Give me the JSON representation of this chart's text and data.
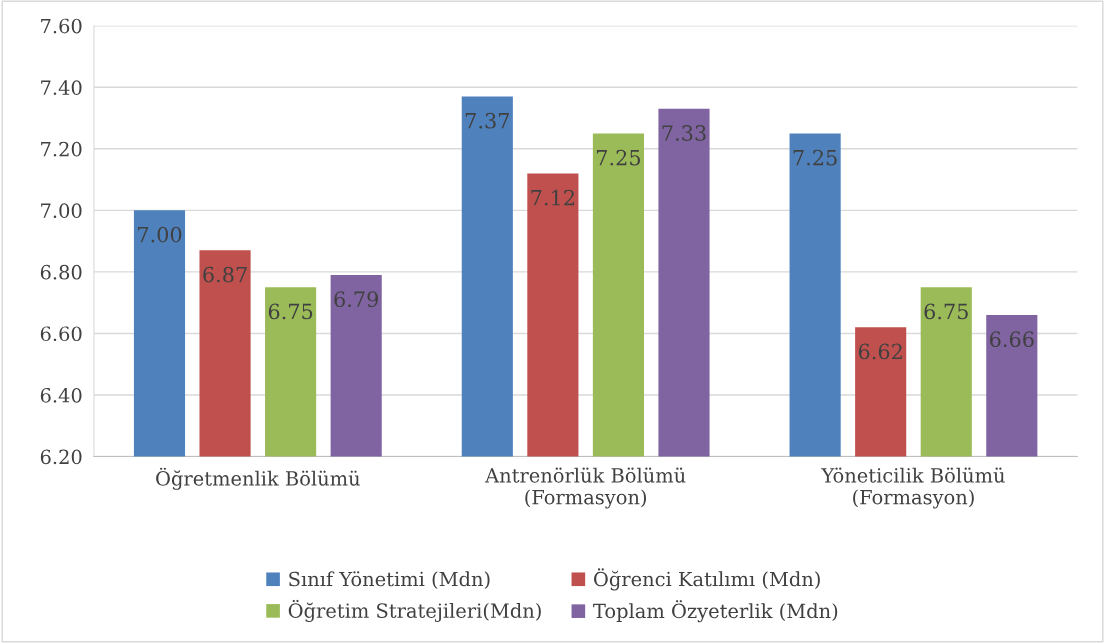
{
  "chart_data": {
    "type": "bar",
    "categories": [
      "Öğretmenlik Bölümü",
      "Antrenörlük Bölümü\n(Formasyon)",
      "Yöneticilik Bölümü\n(Formasyon)"
    ],
    "series": [
      {
        "name": "Sınıf Yönetimi (Mdn)",
        "color": "#4f81bd",
        "values": [
          7.0,
          7.37,
          7.25
        ],
        "value_labels": [
          "7.00",
          "7.37",
          "7.25"
        ]
      },
      {
        "name": "Öğrenci Katılımı (Mdn)",
        "color": "#c0504d",
        "values": [
          6.87,
          7.12,
          6.62
        ],
        "value_labels": [
          "6.87",
          "7.12",
          "6.62"
        ]
      },
      {
        "name": "Öğretim Stratejileri(Mdn)",
        "color": "#9bbb59",
        "values": [
          6.75,
          7.25,
          6.75
        ],
        "value_labels": [
          "6.75",
          "7.25",
          "6.75"
        ]
      },
      {
        "name": "Toplam Özyeterlik (Mdn)",
        "color": "#8064a2",
        "values": [
          6.79,
          7.33,
          6.66
        ],
        "value_labels": [
          "6.79",
          "7.33",
          "6.66"
        ]
      }
    ],
    "ylim": [
      6.2,
      7.6
    ],
    "yticks": [
      {
        "value": 6.2,
        "label": "6.20"
      },
      {
        "value": 6.4,
        "label": "6.40"
      },
      {
        "value": 6.6,
        "label": "6.60"
      },
      {
        "value": 6.8,
        "label": "6.80"
      },
      {
        "value": 7.0,
        "label": "7.00"
      },
      {
        "value": 7.2,
        "label": "7.20"
      },
      {
        "value": 7.4,
        "label": "7.40"
      },
      {
        "value": 7.6,
        "label": "7.60"
      }
    ],
    "grid": "y",
    "legend": "bottom"
  }
}
